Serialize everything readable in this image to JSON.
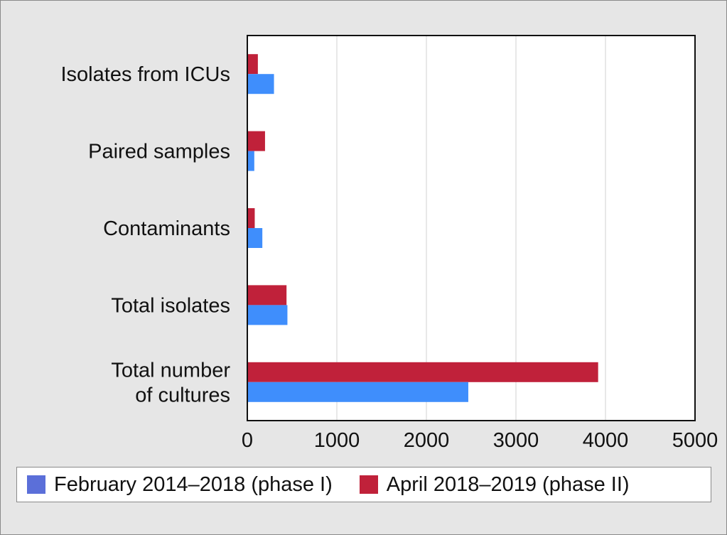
{
  "chart_data": {
    "type": "bar",
    "orientation": "horizontal",
    "categories": [
      "Isolates from ICUs",
      "Paired samples",
      "Contaminants",
      "Total isolates",
      "Total number of cultures"
    ],
    "category_lines": [
      [
        "Isolates from ICUs"
      ],
      [
        "Paired samples"
      ],
      [
        "Contaminants"
      ],
      [
        "Total isolates"
      ],
      [
        "Total number",
        "of cultures"
      ]
    ],
    "series": [
      {
        "name": "February 2014–2018 (phase I)",
        "color": "#3f8efc",
        "values": [
          290,
          70,
          160,
          440,
          2460
        ]
      },
      {
        "name": "April 2018–2019 (phase II)",
        "color": "#c0213a",
        "values": [
          110,
          190,
          75,
          430,
          3910
        ]
      }
    ],
    "xlim": [
      0,
      5000
    ],
    "xticks": [
      "0",
      "1000",
      "2000",
      "3000",
      "4000",
      "5000"
    ],
    "grid": true,
    "legend_position": "bottom",
    "legend_swatch_colors": [
      "#5b6fd9",
      "#c0213a"
    ]
  }
}
